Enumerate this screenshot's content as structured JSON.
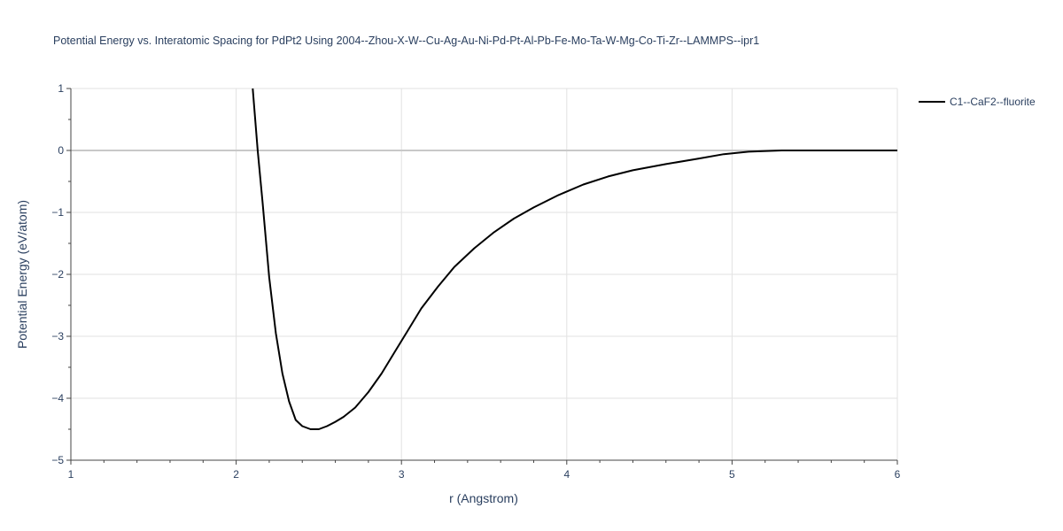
{
  "chart_data": {
    "type": "line",
    "title": "Potential Energy vs. Interatomic Spacing for PdPt2 Using 2004--Zhou-X-W--Cu-Ag-Au-Ni-Pd-Pt-Al-Pb-Fe-Mo-Ta-W-Mg-Co-Ti-Zr--LAMMPS--ipr1",
    "xlabel": "r (Angstrom)",
    "ylabel": "Potential Energy (eV/atom)",
    "xlim": [
      1,
      6
    ],
    "ylim": [
      -5,
      1
    ],
    "x_ticks": [
      1,
      2,
      3,
      4,
      5,
      6
    ],
    "x_tick_labels": [
      "1",
      "2",
      "3",
      "4",
      "5",
      "6"
    ],
    "y_ticks": [
      1,
      0,
      -1,
      -2,
      -3,
      -4,
      -5
    ],
    "y_tick_labels": [
      "1",
      "0",
      "−1",
      "−2",
      "−3",
      "−4",
      "−5"
    ],
    "grid": true,
    "legend_position": "top-right",
    "series": [
      {
        "name": "C1--CaF2--fluorite",
        "color": "#000000",
        "x": [
          2.1,
          2.13,
          2.16,
          2.2,
          2.24,
          2.28,
          2.32,
          2.36,
          2.4,
          2.45,
          2.5,
          2.55,
          2.6,
          2.65,
          2.72,
          2.8,
          2.88,
          2.96,
          3.04,
          3.12,
          3.22,
          3.32,
          3.44,
          3.56,
          3.68,
          3.8,
          3.95,
          4.1,
          4.25,
          4.4,
          4.6,
          4.8,
          4.95,
          5.1,
          5.3,
          5.6,
          6.0
        ],
        "y": [
          1.0,
          0.0,
          -0.85,
          -2.05,
          -2.95,
          -3.6,
          -4.05,
          -4.35,
          -4.45,
          -4.5,
          -4.5,
          -4.45,
          -4.38,
          -4.3,
          -4.15,
          -3.9,
          -3.6,
          -3.25,
          -2.9,
          -2.55,
          -2.2,
          -1.88,
          -1.58,
          -1.32,
          -1.1,
          -0.92,
          -0.72,
          -0.55,
          -0.42,
          -0.32,
          -0.22,
          -0.13,
          -0.06,
          -0.02,
          0.0,
          0.0,
          0.0
        ]
      }
    ]
  }
}
